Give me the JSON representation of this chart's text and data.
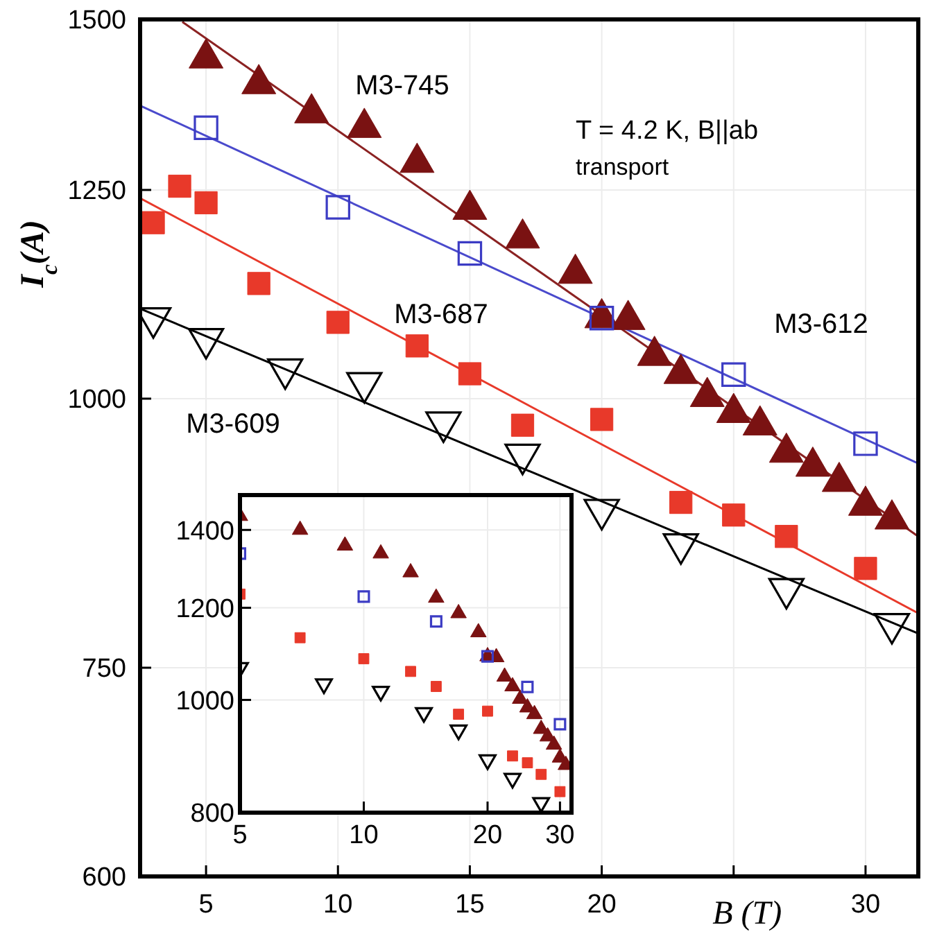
{
  "chart_data": [
    {
      "type": "scatter",
      "xlabel": "B (T)",
      "ylabel": "I$_{c}$(A)",
      "log": "y",
      "grid": true,
      "xlim": [
        2.5,
        32
      ],
      "ylim": [
        600,
        1500
      ],
      "xticks": [
        5,
        10,
        15,
        20,
        {
          "value": 25,
          "label": null
        },
        30
      ],
      "yticks": [
        600,
        750,
        1000,
        1250,
        1500
      ],
      "annotations": [
        "T = 4.2 K, B||ab",
        "transport"
      ],
      "series": [
        {
          "name": "M3-745",
          "color": "#7a1212",
          "marker": "triangle",
          "x": [
            5,
            7,
            9,
            11,
            13,
            15,
            17,
            19,
            20,
            21,
            22,
            23,
            24,
            25,
            26,
            27,
            28,
            29,
            30,
            31
          ],
          "values": [
            1439,
            1400,
            1357,
            1336,
            1287,
            1224,
            1187,
            1143,
            1090,
            1088,
            1047,
            1027,
            1002,
            985,
            972,
            944,
            930,
            915,
            892,
            879
          ]
        },
        {
          "name": "M3-612",
          "color": "#3c3cc4",
          "marker": "square-open",
          "x": [
            5,
            10,
            15,
            20,
            25,
            30
          ],
          "values": [
            1336,
            1227,
            1168,
            1090,
            1026,
            953
          ]
        },
        {
          "name": "M3-687",
          "color": "#e8392a",
          "marker": "square",
          "x": [
            3,
            4,
            5,
            7,
            10,
            13,
            15,
            17,
            20,
            23,
            25,
            27,
            30
          ],
          "values": [
            1207,
            1255,
            1233,
            1131,
            1085,
            1058,
            1027,
            972,
            978,
            895,
            883,
            863,
            834
          ]
        },
        {
          "name": "M3-609",
          "color": "#000000",
          "marker": "triangle-down-open",
          "x": [
            3,
            5,
            8,
            11,
            14,
            17,
            20,
            23,
            27,
            31
          ],
          "values": [
            1090,
            1066,
            1032,
            1017,
            975,
            942,
            888,
            856,
            816,
            786
          ]
        },
        {
          "type": "line",
          "color": "#8b2222",
          "x": [
            4.1,
            32
          ],
          "values": [
            1496,
            863
          ]
        },
        {
          "type": "line",
          "color": "#4a4acc",
          "x": [
            2.5,
            32
          ],
          "values": [
            1368,
            933
          ]
        },
        {
          "type": "line",
          "color": "#e8392a",
          "x": [
            2.5,
            32
          ],
          "values": [
            1239,
            795
          ]
        },
        {
          "type": "line",
          "color": "#000000",
          "x": [
            2.5,
            32
          ],
          "values": [
            1101,
            778
          ]
        }
      ]
    },
    {
      "type": "scatter",
      "log": "xy",
      "grid": true,
      "xlim": [
        5,
        32
      ],
      "ylim": [
        800,
        1500
      ],
      "xticks": [
        5,
        10,
        20,
        30
      ],
      "yticks": [
        800,
        1000,
        1200,
        1400
      ],
      "series": [
        {
          "color": "#7a1212",
          "marker": "triangle",
          "x": [
            5,
            7,
            9,
            11,
            13,
            15,
            17,
            19,
            20,
            21,
            22,
            23,
            24,
            25,
            26,
            27,
            28,
            29,
            30,
            31
          ],
          "values": [
            1439,
            1400,
            1357,
            1336,
            1287,
            1224,
            1187,
            1143,
            1090,
            1088,
            1047,
            1027,
            1002,
            985,
            972,
            944,
            930,
            915,
            892,
            879
          ]
        },
        {
          "color": "#3c3cc4",
          "marker": "square-open",
          "x": [
            5,
            10,
            15,
            20,
            25,
            30
          ],
          "values": [
            1336,
            1227,
            1168,
            1090,
            1026,
            953
          ]
        },
        {
          "color": "#e8392a",
          "marker": "square",
          "x": [
            5,
            7,
            10,
            13,
            15,
            17,
            20,
            23,
            25,
            27,
            30
          ],
          "values": [
            1233,
            1131,
            1085,
            1058,
            1027,
            972,
            978,
            895,
            883,
            863,
            834
          ]
        },
        {
          "color": "#000000",
          "marker": "triangle-down-open",
          "x": [
            5,
            8,
            11,
            14,
            17,
            20,
            23,
            27
          ],
          "values": [
            1066,
            1032,
            1017,
            975,
            942,
            888,
            856,
            816
          ]
        }
      ]
    }
  ]
}
